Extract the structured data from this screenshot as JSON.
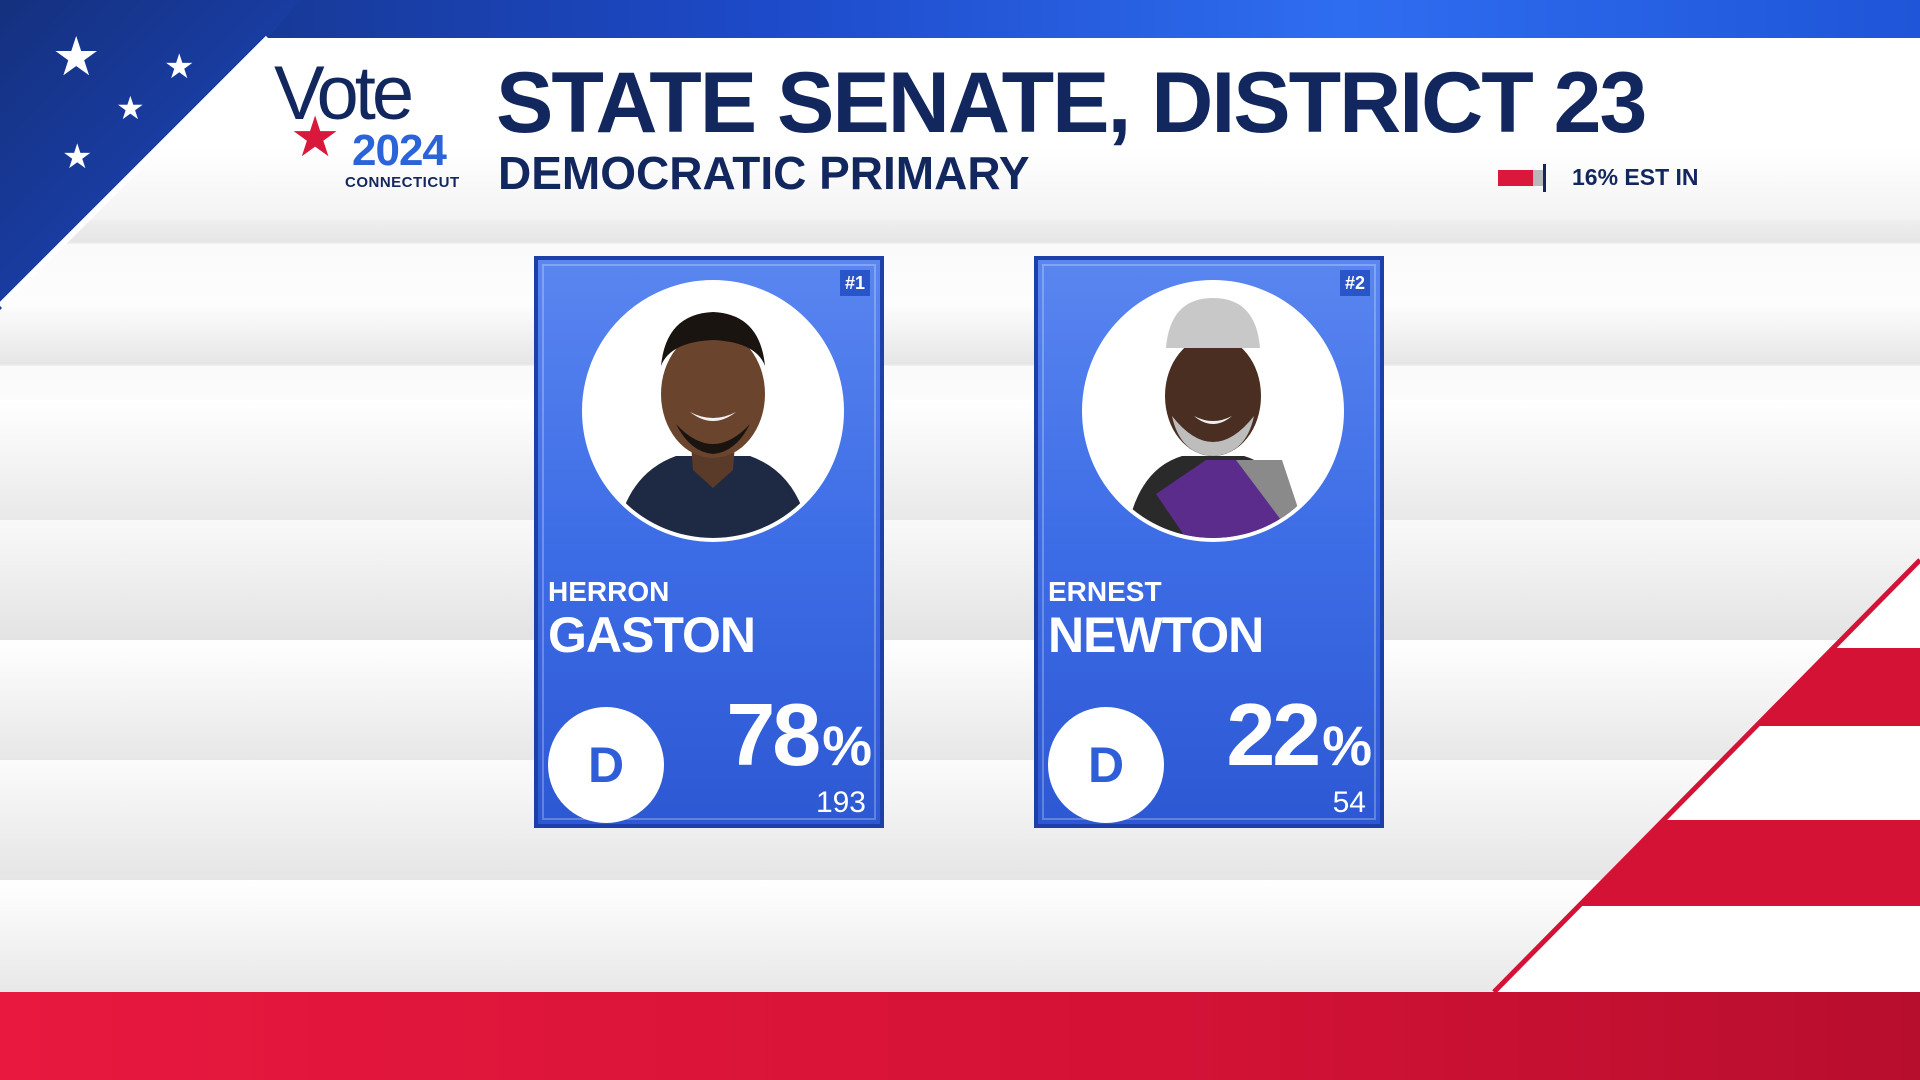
{
  "logo": {
    "word": "Vote",
    "year": "2024",
    "state": "CONNECTICUT"
  },
  "race": {
    "title": "STATE SENATE, DISTRICT 23",
    "subtitle": "DEMOCRATIC PRIMARY"
  },
  "reporting": {
    "label": "16% EST IN",
    "fraction": 0.16,
    "color": "#d9183b"
  },
  "candidates": [
    {
      "rank": "#1",
      "first_name": "HERRON",
      "last_name": "GASTON",
      "party": "D",
      "percent": "78",
      "percent_sign": "%",
      "votes": "193"
    },
    {
      "rank": "#2",
      "first_name": "ERNEST",
      "last_name": "NEWTON",
      "party": "D",
      "percent": "22",
      "percent_sign": "%",
      "votes": "54"
    }
  ],
  "colors": {
    "navy": "#13275f",
    "card_blue": "#3d6de6",
    "flag_red": "#d9183b"
  }
}
